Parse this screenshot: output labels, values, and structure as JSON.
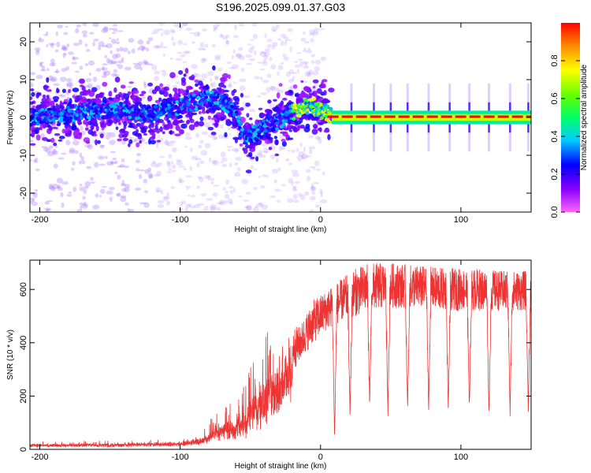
{
  "title": "S196.2025.099.01.37.G03",
  "chart_data": [
    {
      "type": "heatmap",
      "xlabel": "Height of straight line (km)",
      "ylabel": "Frequency (Hz)",
      "xlim": [
        -207,
        150
      ],
      "ylim": [
        -25,
        25
      ],
      "xticks": [
        -200,
        -100,
        0,
        100
      ],
      "yticks": [
        -20,
        -10,
        0,
        10,
        20
      ],
      "colorbar": {
        "label": "Normalized spectral amplitude",
        "range": [
          0,
          1
        ],
        "ticks": [
          0.0,
          0.2,
          0.4,
          0.6,
          0.8
        ],
        "tick_labels": [
          "0.0",
          "0.2",
          "0.4",
          "0.6",
          "0.8"
        ],
        "colormap": [
          "#ff66ff",
          "#8800ff",
          "#0000ff",
          "#00ccff",
          "#00ff66",
          "#66ff00",
          "#ffff00",
          "#ff8800",
          "#ff0000"
        ]
      },
      "ridge": {
        "x": [
          -207,
          -180,
          -150,
          -120,
          -100,
          -90,
          -80,
          -70,
          -62,
          -57,
          -52,
          -45,
          -38,
          -30,
          -22,
          -15,
          -10,
          -5,
          0,
          5,
          10,
          20,
          40,
          60,
          80,
          100,
          120,
          150
        ],
        "y": [
          0,
          1,
          2,
          1,
          3,
          4,
          5,
          4,
          2,
          -3,
          -5,
          -4,
          -2,
          -1,
          1,
          2,
          3,
          3,
          2,
          1,
          0.5,
          0,
          0,
          0,
          0,
          0,
          0,
          0
        ]
      },
      "regions": [
        {
          "x_range": [
            -207,
            -100
          ],
          "description": "noisy"
        },
        {
          "x_range": [
            10,
            150
          ],
          "description": "strong tone near 0 Hz"
        }
      ]
    },
    {
      "type": "line",
      "xlabel": "Height of straight line (km)",
      "ylabel": "SNR (10 * v/v)",
      "xlim": [
        -207,
        150
      ],
      "ylim": [
        0,
        710
      ],
      "xticks": [
        -200,
        -100,
        0,
        100
      ],
      "yticks": [
        0,
        200,
        400,
        600
      ],
      "color": "#ee3333",
      "envelope": {
        "x": [
          -207,
          -150,
          -100,
          -85,
          -75,
          -65,
          -55,
          -45,
          -35,
          -25,
          -15,
          -5,
          5,
          15,
          25,
          35,
          50,
          70,
          90,
          110,
          130,
          150
        ],
        "base": [
          15,
          15,
          20,
          30,
          60,
          60,
          70,
          120,
          180,
          250,
          330,
          400,
          450,
          480,
          500,
          520,
          530,
          530,
          520,
          520,
          520,
          520
        ],
        "peak": [
          30,
          35,
          40,
          60,
          150,
          200,
          250,
          450,
          500,
          470,
          460,
          560,
          600,
          640,
          680,
          700,
          700,
          690,
          680,
          680,
          670,
          670
        ]
      },
      "dips": {
        "x": [
          10,
          21,
          35,
          48,
          62,
          77,
          91,
          106,
          120,
          135,
          148
        ],
        "min": [
          30,
          110,
          150,
          120,
          130,
          130,
          130,
          140,
          120,
          120,
          130
        ]
      }
    }
  ]
}
